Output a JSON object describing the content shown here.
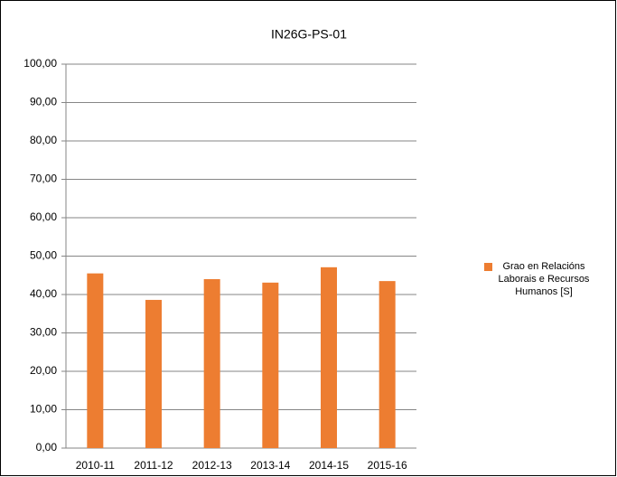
{
  "chart_data": {
    "type": "bar",
    "title": "IN26G-PS-01",
    "categories": [
      "2010-11",
      "2011-12",
      "2012-13",
      "2013-14",
      "2014-15",
      "2015-16"
    ],
    "series": [
      {
        "name": "Grao en Relacións Laborais e Recursos Humanos [S]",
        "color": "#ed7d31",
        "values": [
          45.5,
          38.6,
          44.0,
          43.1,
          47.1,
          43.5
        ]
      }
    ],
    "ylim": [
      0,
      100
    ],
    "yticks": [
      {
        "value": 0,
        "label": "0,00"
      },
      {
        "value": 10,
        "label": "10,00"
      },
      {
        "value": 20,
        "label": "20,00"
      },
      {
        "value": 30,
        "label": "30,00"
      },
      {
        "value": 40,
        "label": "40,00"
      },
      {
        "value": 50,
        "label": "50,00"
      },
      {
        "value": 60,
        "label": "60,00"
      },
      {
        "value": 70,
        "label": "70,00"
      },
      {
        "value": 80,
        "label": "80,00"
      },
      {
        "value": 90,
        "label": "90,00"
      },
      {
        "value": 100,
        "label": "100,00"
      }
    ],
    "grid": true,
    "legend": "right"
  }
}
